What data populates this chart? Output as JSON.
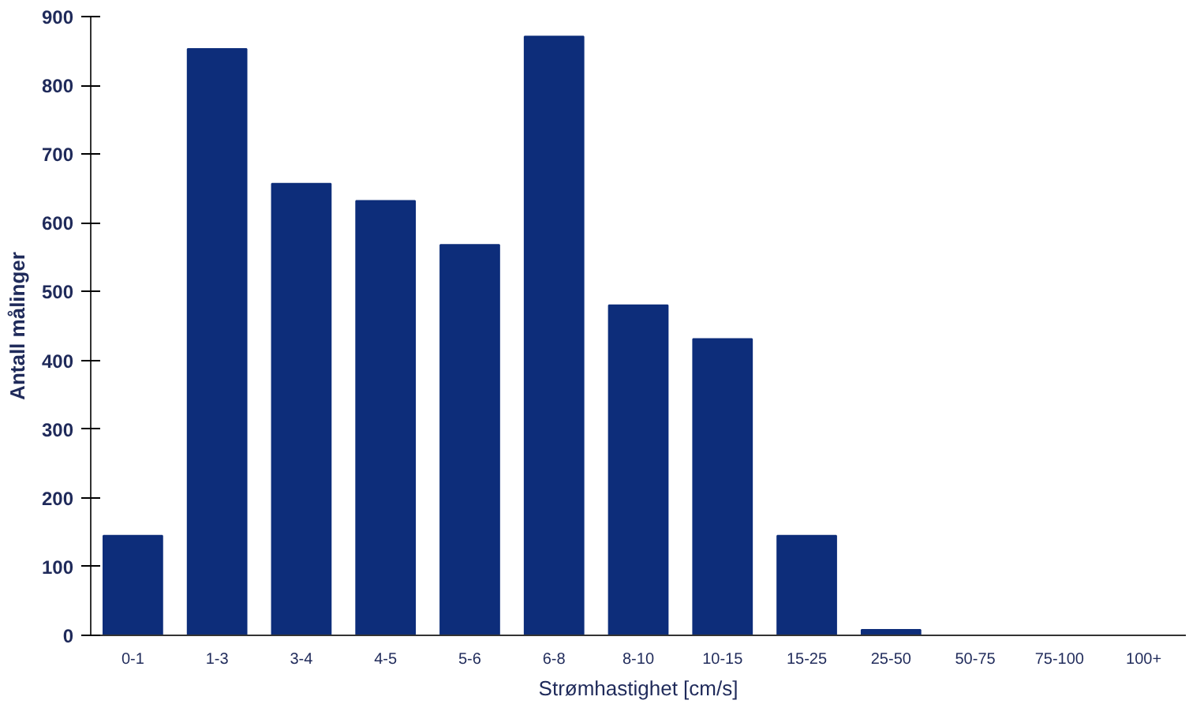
{
  "chart_data": {
    "type": "bar",
    "xlabel": "Strømhastighet [cm/s]",
    "ylabel": "Antall målinger",
    "categories": [
      "0-1",
      "1-3",
      "3-4",
      "4-5",
      "5-6",
      "6-8",
      "8-10",
      "10-15",
      "15-25",
      "25-50",
      "50-75",
      "75-100",
      "100+"
    ],
    "values": [
      145,
      853,
      657,
      632,
      568,
      871,
      480,
      431,
      145,
      8,
      0,
      0,
      0
    ],
    "color": "#0d2d7a",
    "ylim": [
      0,
      900
    ],
    "yticks": [
      0,
      100,
      200,
      300,
      400,
      500,
      600,
      700,
      800,
      900
    ],
    "grid": false
  }
}
